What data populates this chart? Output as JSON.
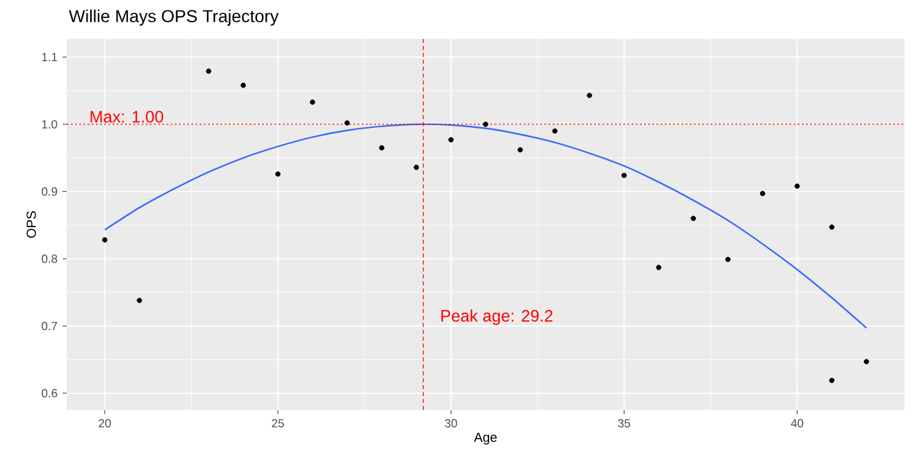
{
  "chart_data": {
    "type": "scatter",
    "title": "Willie Mays OPS Trajectory",
    "xlabel": "Age",
    "ylabel": "OPS",
    "xlim": [
      18.9,
      43.1
    ],
    "ylim": [
      0.575,
      1.127
    ],
    "xticks": [
      20,
      25,
      30,
      35,
      40
    ],
    "yticks": [
      0.6,
      0.7,
      0.8,
      0.9,
      {
        "value": 1.0,
        "label": "1.0"
      },
      1.1
    ],
    "grid": true,
    "marker": "circle",
    "series": [
      {
        "color": "#000000",
        "x": [
          20,
          21,
          23,
          24,
          25,
          26,
          27,
          28,
          29,
          30,
          31,
          32,
          33,
          34,
          35,
          36,
          37,
          38,
          39,
          40,
          41,
          41,
          42
        ],
        "values": [
          0.828,
          0.738,
          1.079,
          1.058,
          0.926,
          1.033,
          1.002,
          0.965,
          0.936,
          0.977,
          1.0,
          0.962,
          0.99,
          1.043,
          0.924,
          0.787,
          0.86,
          0.799,
          0.897,
          0.908,
          0.847,
          0.619,
          0.647
        ]
      },
      {
        "type": "line",
        "color": "#3366ff",
        "line_style": "solid",
        "marker": "none",
        "x": [
          20,
          21,
          22,
          23,
          24,
          25,
          26,
          27,
          28,
          29,
          30,
          31,
          32,
          33,
          34,
          35,
          36,
          37,
          38,
          39,
          40,
          41,
          42
        ],
        "values": [
          0.843,
          0.876,
          0.904,
          0.929,
          0.95,
          0.967,
          0.981,
          0.991,
          0.997,
          1.0,
          0.999,
          0.994,
          0.985,
          0.973,
          0.957,
          0.938,
          0.914,
          0.887,
          0.857,
          0.822,
          0.784,
          0.742,
          0.697
        ]
      }
    ],
    "ref_lines": [
      {
        "axis": "y",
        "value": 1.0,
        "label": "Max: 1.00",
        "color": "#ff0000",
        "line_style": "dotted"
      },
      {
        "axis": "x",
        "value": 29.2,
        "label": "Peak age: 29.2",
        "color": "#ff0000",
        "line_style": "dashed"
      }
    ]
  }
}
